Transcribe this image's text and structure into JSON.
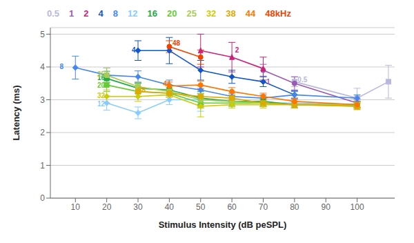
{
  "chart_data": {
    "type": "line",
    "xlabel": "Stimulus Intensity (dB peSPL)",
    "ylabel": "Latency (ms)",
    "xlim": [
      2,
      112
    ],
    "ylim": [
      0,
      5.2
    ],
    "xticks": [
      10,
      20,
      30,
      40,
      50,
      60,
      70,
      80,
      90,
      100
    ],
    "yticks": [
      0,
      1,
      2,
      3,
      4,
      5
    ],
    "grid": "y",
    "series": [
      {
        "name": "0.5",
        "color": "#b8b8dd",
        "marker": "square",
        "x": [
          80,
          100,
          110
        ],
        "values": [
          3.55,
          3.05,
          3.55
        ],
        "yerr": [
          0.15,
          0.3,
          0.5
        ]
      },
      {
        "name": "1",
        "color": "#9b59b6",
        "marker": "circle",
        "x": [
          70,
          80,
          100
        ],
        "values": [
          3.9,
          3.5,
          2.9
        ],
        "yerr": [
          0.18,
          0.2,
          0.12
        ]
      },
      {
        "name": "2",
        "color": "#cc2277",
        "marker": "triangle",
        "x": [
          50,
          60,
          70
        ],
        "values": [
          4.5,
          4.3,
          3.95
        ],
        "yerr": [
          0.5,
          0.45,
          0.35
        ]
      },
      {
        "name": "4",
        "color": "#1155cc",
        "marker": "diamond",
        "x": [
          30,
          40,
          50,
          60,
          70,
          80
        ],
        "values": [
          4.5,
          4.5,
          3.9,
          3.7,
          3.55,
          3.15
        ],
        "yerr": [
          0.3,
          0.4,
          0.3,
          0.2,
          0.15,
          0.12
        ]
      },
      {
        "name": "8",
        "color": "#4488ee",
        "marker": "diamond",
        "x": [
          10,
          20,
          30,
          40,
          50,
          60,
          70,
          80,
          100
        ],
        "values": [
          3.98,
          3.75,
          3.7,
          3.45,
          3.3,
          3.1,
          3.05,
          3.15,
          3.05
        ],
        "yerr": [
          0.35,
          0.22,
          0.18,
          0.15,
          0.12,
          0.1,
          0.1,
          0.1,
          0.1
        ]
      },
      {
        "name": "12",
        "color": "#88ccff",
        "marker": "diamond",
        "x": [
          20,
          30,
          40,
          50,
          60,
          70,
          80,
          100
        ],
        "values": [
          2.9,
          2.6,
          3.0,
          3.0,
          2.95,
          2.9,
          2.9,
          2.85
        ],
        "yerr": [
          0.22,
          0.18,
          0.15,
          0.35,
          0.15,
          0.1,
          0.1,
          0.1
        ]
      },
      {
        "name": "16",
        "color": "#22aa44",
        "marker": "square",
        "x": [
          20,
          30,
          40,
          50,
          60,
          70,
          80,
          100
        ],
        "values": [
          3.65,
          3.35,
          3.3,
          3.05,
          2.95,
          2.95,
          2.85,
          2.85
        ],
        "yerr": [
          0.22,
          0.15,
          0.15,
          0.2,
          0.1,
          0.1,
          0.1,
          0.1
        ]
      },
      {
        "name": "20",
        "color": "#66cc33",
        "marker": "square",
        "x": [
          20,
          30,
          40,
          50,
          60,
          70,
          80,
          100
        ],
        "values": [
          3.45,
          3.25,
          3.2,
          2.9,
          2.9,
          2.9,
          2.85,
          2.85
        ],
        "yerr": [
          0.2,
          0.15,
          0.12,
          0.15,
          0.1,
          0.1,
          0.1,
          0.1
        ]
      },
      {
        "name": "25",
        "color": "#aacc55",
        "marker": "square",
        "x": [
          20,
          30,
          40,
          50,
          60,
          70,
          80,
          100
        ],
        "values": [
          3.75,
          3.4,
          3.25,
          3.0,
          2.95,
          2.9,
          2.85,
          2.85
        ],
        "yerr": [
          0.22,
          0.15,
          0.12,
          0.2,
          0.1,
          0.1,
          0.1,
          0.1
        ]
      },
      {
        "name": "32",
        "color": "#cccc00",
        "marker": "diamond",
        "x": [
          20,
          30,
          40,
          50,
          60,
          70,
          80,
          100
        ],
        "values": [
          3.1,
          3.1,
          3.15,
          2.8,
          2.85,
          2.85,
          2.85,
          2.8
        ],
        "yerr": [
          0.2,
          0.15,
          0.15,
          0.32,
          0.1,
          0.1,
          0.1,
          0.1
        ]
      },
      {
        "name": "38",
        "color": "#ddaa00",
        "marker": "square",
        "x": [
          30,
          40,
          50,
          60,
          70,
          80,
          100
        ],
        "values": [
          3.25,
          3.2,
          3.1,
          3.05,
          2.9,
          2.85,
          2.8
        ],
        "yerr": [
          0.15,
          0.12,
          0.32,
          0.1,
          0.1,
          0.1,
          0.1
        ]
      },
      {
        "name": "44",
        "color": "#ff7700",
        "marker": "circle",
        "x": [
          40,
          50,
          60,
          70,
          80,
          100
        ],
        "values": [
          3.42,
          3.45,
          3.25,
          3.1,
          2.95,
          2.85
        ],
        "yerr": [
          0.12,
          0.12,
          0.12,
          0.1,
          0.1,
          0.1
        ]
      },
      {
        "name": "48",
        "color": "#ee4400",
        "marker": "circle",
        "x": [
          40,
          50
        ],
        "values": [
          4.62,
          4.3
        ],
        "yerr": [
          0.18,
          0.22
        ]
      }
    ],
    "annotations": [
      {
        "text": "0.5",
        "x": 81,
        "y": 3.62,
        "color": "#b8b8dd"
      },
      {
        "text": "1",
        "x": 71,
        "y": 3.55,
        "color": "#9b59b6"
      },
      {
        "text": "2",
        "x": 61,
        "y": 4.52,
        "color": "#cc2277"
      },
      {
        "text": "4",
        "x": 28,
        "y": 4.52,
        "color": "#1155cc"
      },
      {
        "text": "8",
        "x": 5,
        "y": 4.02,
        "color": "#4488ee"
      },
      {
        "text": "12",
        "x": 17,
        "y": 2.88,
        "color": "#88ccff"
      },
      {
        "text": "16",
        "x": 17,
        "y": 3.68,
        "color": "#22aa44"
      },
      {
        "text": "20",
        "x": 17,
        "y": 3.44,
        "color": "#66cc33"
      },
      {
        "text": "25",
        "x": 17,
        "y": 3.78,
        "color": "#aacc55"
      },
      {
        "text": "32",
        "x": 17,
        "y": 3.12,
        "color": "#cccc00"
      },
      {
        "text": "38",
        "x": 30,
        "y": 3.3,
        "color": "#ddaa00"
      },
      {
        "text": "44",
        "x": 38,
        "y": 3.48,
        "color": "#ff7700"
      },
      {
        "text": "48",
        "x": 41,
        "y": 4.72,
        "color": "#ee4400"
      }
    ],
    "top_labels": [
      {
        "text": "0.5",
        "color": "#b8b8dd"
      },
      {
        "text": "1",
        "color": "#9b59b6"
      },
      {
        "text": "2",
        "color": "#cc2277"
      },
      {
        "text": "4",
        "color": "#1155cc"
      },
      {
        "text": "8",
        "color": "#4488ee"
      },
      {
        "text": "12",
        "color": "#88ccff"
      },
      {
        "text": "16",
        "color": "#22aa44"
      },
      {
        "text": "20",
        "color": "#66cc33"
      },
      {
        "text": "25",
        "color": "#aacc55"
      },
      {
        "text": "32",
        "color": "#cccc00"
      },
      {
        "text": "38",
        "color": "#ddaa00"
      },
      {
        "text": "44",
        "color": "#ff7700"
      },
      {
        "text": "48kHz",
        "color": "#ee4400"
      }
    ]
  }
}
